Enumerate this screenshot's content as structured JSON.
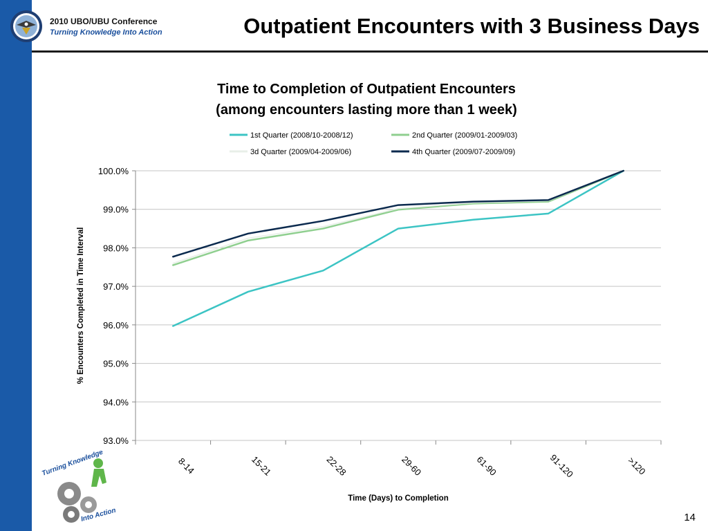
{
  "header": {
    "conference_name": "2010 UBO/UBU Conference",
    "tagline": "Turning Knowledge Into Action",
    "slide_title": "Outpatient Encounters with 3 Business Days"
  },
  "logo": {
    "text_top": "Turning Knowledge",
    "text_bottom": "Into Action"
  },
  "page_number": "14",
  "colors": {
    "sidebar": "#1a5aa8",
    "q1": "#3cc4c4",
    "q2": "#8fcf8f",
    "q3": "#e8efe8",
    "q4": "#0b2a4e",
    "grid": "#c4c4c4"
  },
  "chart_data": {
    "type": "line",
    "title": [
      "Time to Completion of Outpatient Encounters",
      "(among encounters lasting more than 1 week)"
    ],
    "xlabel": "Time (Days) to Completion",
    "ylabel": "% Encounters Completed in Time Interval",
    "categories": [
      "8-14",
      "15-21",
      "22-28",
      "29-60",
      "61-90",
      "91-120",
      ">120"
    ],
    "ylim": [
      93.0,
      100.0
    ],
    "yticks": [
      "93.0%",
      "94.0%",
      "95.0%",
      "96.0%",
      "97.0%",
      "98.0%",
      "99.0%",
      "100.0%"
    ],
    "grid": true,
    "legend_position": "top",
    "series": [
      {
        "name": "1st Quarter (2008/10-2008/12)",
        "values": [
          95.97,
          96.86,
          97.41,
          98.5,
          98.73,
          98.89,
          100.0
        ]
      },
      {
        "name": "2nd Quarter (2009/01-2009/03)",
        "values": [
          97.55,
          98.19,
          98.5,
          98.99,
          99.15,
          99.2,
          100.0
        ]
      },
      {
        "name": "3d Quarter (2009/04-2009/06)",
        "values": [
          97.6,
          98.25,
          98.55,
          99.02,
          99.17,
          99.22,
          100.0
        ]
      },
      {
        "name": "4th Quarter (2009/07-2009/09)",
        "values": [
          97.77,
          98.37,
          98.7,
          99.11,
          99.2,
          99.24,
          100.0
        ]
      }
    ]
  }
}
